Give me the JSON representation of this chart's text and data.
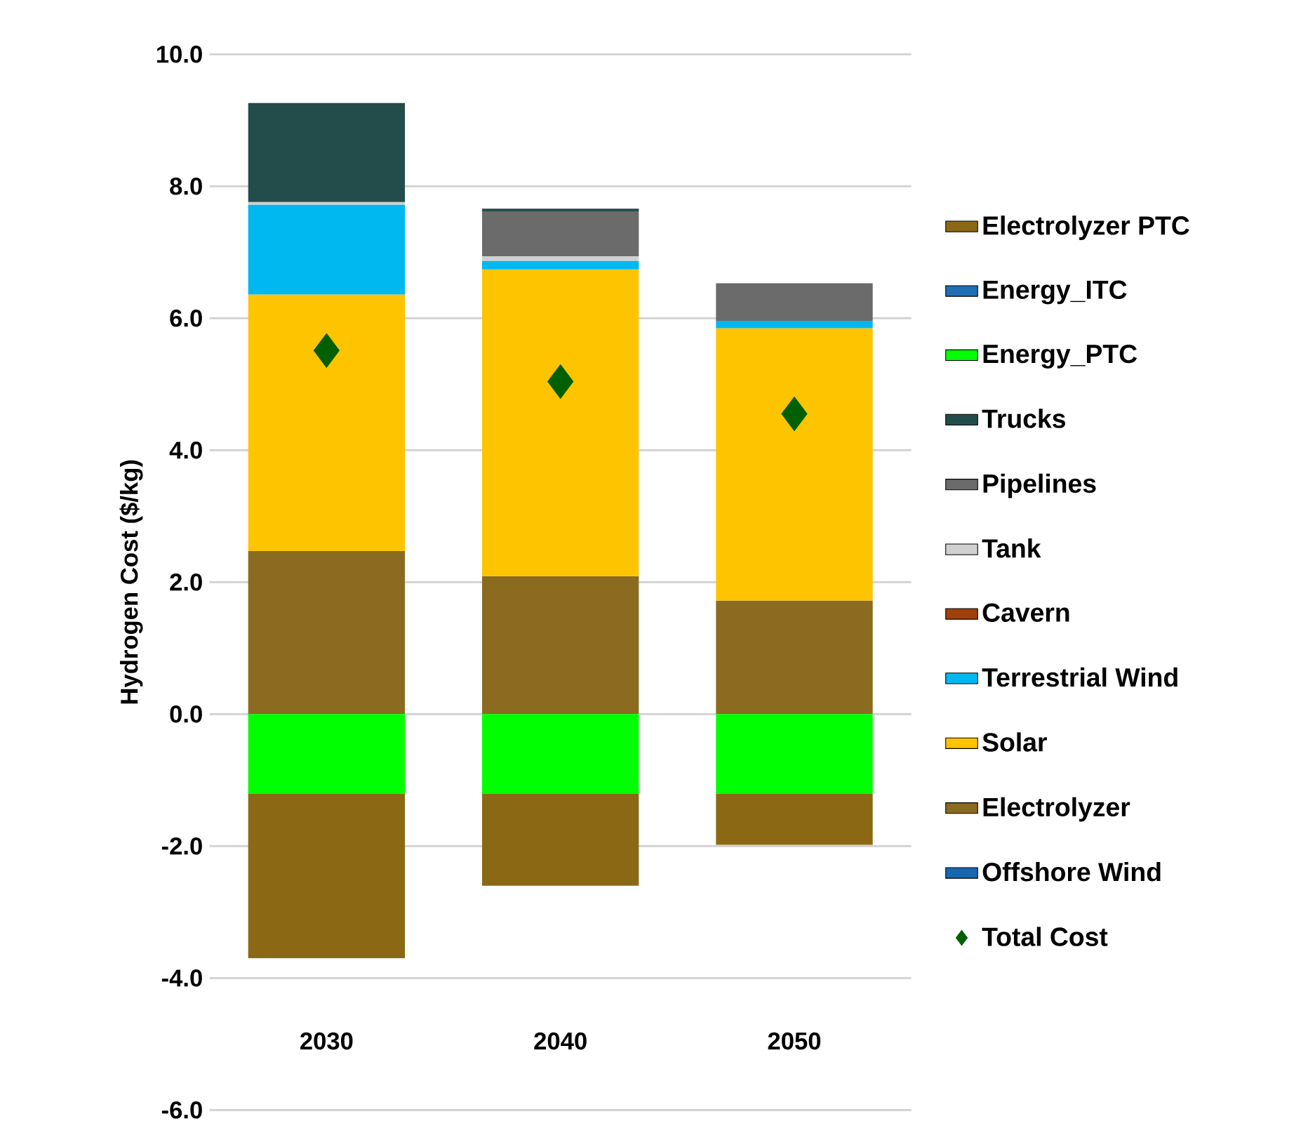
{
  "chart_data": {
    "type": "bar",
    "stacked": true,
    "ylabel": "Hydrogen Cost ($/kg)",
    "categories": [
      "2030",
      "2040",
      "2050"
    ],
    "ylim": [
      -6,
      10
    ],
    "yticks": [
      {
        "value": -6,
        "label": "-6.0"
      },
      {
        "value": -4,
        "label": "-4.0"
      },
      {
        "value": -2,
        "label": "-2.0"
      },
      {
        "value": 0,
        "label": "0.0"
      },
      {
        "value": 2,
        "label": "2.0"
      },
      {
        "value": 4,
        "label": "4.0"
      },
      {
        "value": 6,
        "label": "6.0"
      },
      {
        "value": 8,
        "label": "8.0"
      },
      {
        "value": 10,
        "label": "10.0"
      }
    ],
    "grid": "y",
    "legend": "right",
    "series": [
      {
        "name": "Offshore Wind",
        "color": "#1868b0",
        "values": [
          0,
          0,
          0
        ]
      },
      {
        "name": "Electrolyzer",
        "color": "#8b6b20",
        "values": [
          2.47,
          2.09,
          1.72
        ]
      },
      {
        "name": "Solar",
        "color": "#ffc400",
        "values": [
          3.89,
          4.65,
          4.13
        ]
      },
      {
        "name": "Terrestrial Wind",
        "color": "#00b8f0",
        "values": [
          1.36,
          0.13,
          0.11
        ]
      },
      {
        "name": "Cavern",
        "color": "#a0400a",
        "values": [
          0,
          0,
          0
        ]
      },
      {
        "name": "Tank",
        "color": "#d0d0d0",
        "values": [
          0.04,
          0.07,
          null
        ]
      },
      {
        "name": "Pipelines",
        "color": "#6b6b6b",
        "values": [
          0,
          0.68,
          0.57
        ]
      },
      {
        "name": "Trucks",
        "color": "#234d4b",
        "values": [
          1.5,
          0.04,
          0
        ]
      },
      {
        "name": "Energy_PTC",
        "color": "#00ff00",
        "values": [
          -1.21,
          -1.21,
          -1.21
        ]
      },
      {
        "name": "Energy_ITC",
        "color": "#1f6fb4",
        "values": [
          0,
          0,
          0
        ]
      },
      {
        "name": "Electrolyzer PTC",
        "color": "#8b6914",
        "values": [
          -2.49,
          -1.39,
          -0.77
        ]
      },
      {
        "name": "Total Cost",
        "type": "scatter",
        "marker": "diamond",
        "color": "#006000",
        "values": [
          5.51,
          5.04,
          4.55
        ]
      }
    ]
  }
}
